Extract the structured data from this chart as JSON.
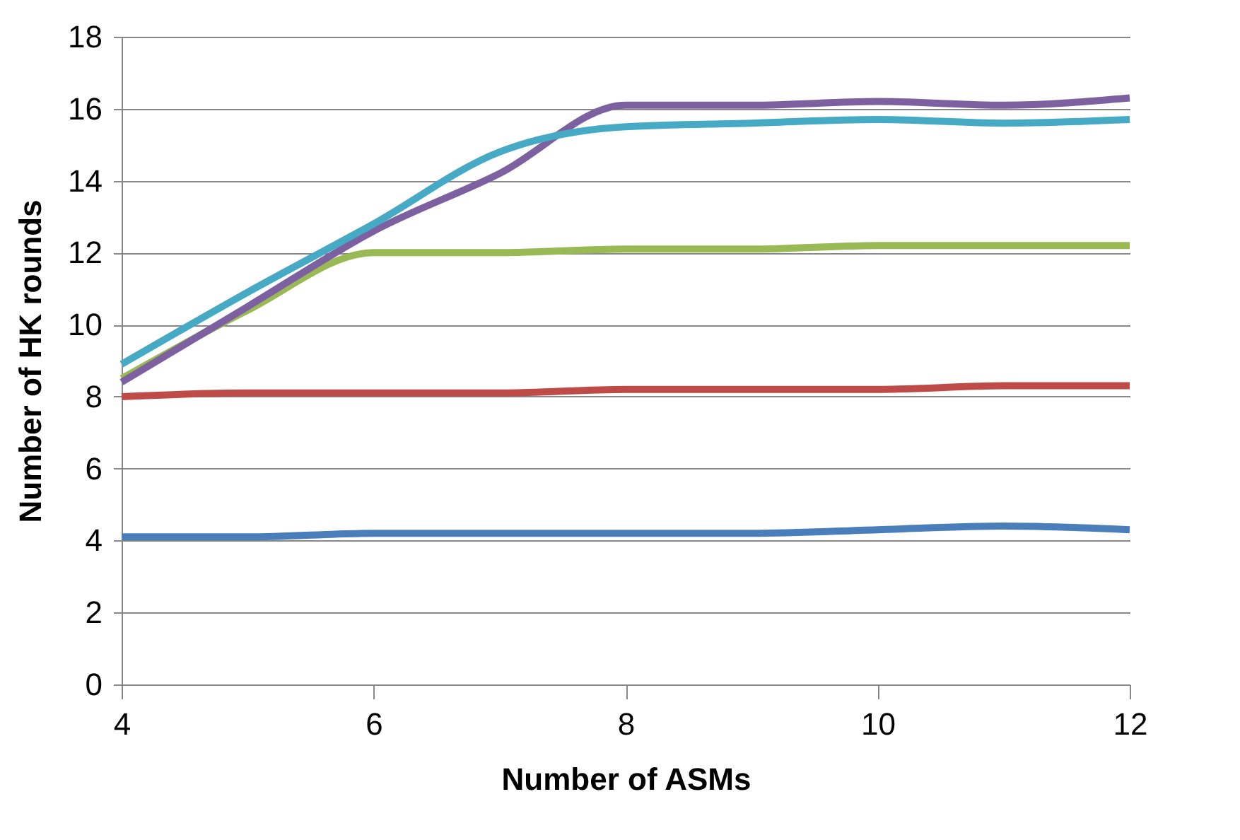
{
  "chart_data": {
    "type": "line",
    "xlabel": "Number of ASMs",
    "ylabel": "Number of HK rounds",
    "x": [
      4,
      5,
      6,
      7,
      8,
      9,
      10,
      11,
      12
    ],
    "series": [
      {
        "color": "#4a7ebb",
        "values": [
          4.1,
          4.1,
          4.2,
          4.2,
          4.2,
          4.2,
          4.3,
          4.4,
          4.3
        ]
      },
      {
        "color": "#be4b48",
        "values": [
          8.0,
          8.1,
          8.1,
          8.1,
          8.2,
          8.2,
          8.2,
          8.3,
          8.3
        ]
      },
      {
        "color": "#98b954",
        "values": [
          8.5,
          10.4,
          12.0,
          12.0,
          12.1,
          12.1,
          12.2,
          12.2,
          12.2
        ]
      },
      {
        "color": "#7d60a0",
        "values": [
          8.4,
          10.5,
          12.6,
          14.2,
          16.1,
          16.1,
          16.2,
          16.1,
          16.3
        ]
      },
      {
        "color": "#46aac5",
        "values": [
          8.9,
          10.9,
          12.8,
          14.8,
          15.5,
          15.6,
          15.7,
          15.6,
          15.7
        ]
      }
    ],
    "xlim": [
      4,
      12
    ],
    "xticks": [
      4,
      6,
      8,
      10,
      12
    ],
    "ylim": [
      0,
      18
    ],
    "yticks": [
      0,
      2,
      4,
      6,
      8,
      10,
      12,
      14,
      16,
      18
    ],
    "grid": "y",
    "marker": "none",
    "line_style": "solid"
  }
}
